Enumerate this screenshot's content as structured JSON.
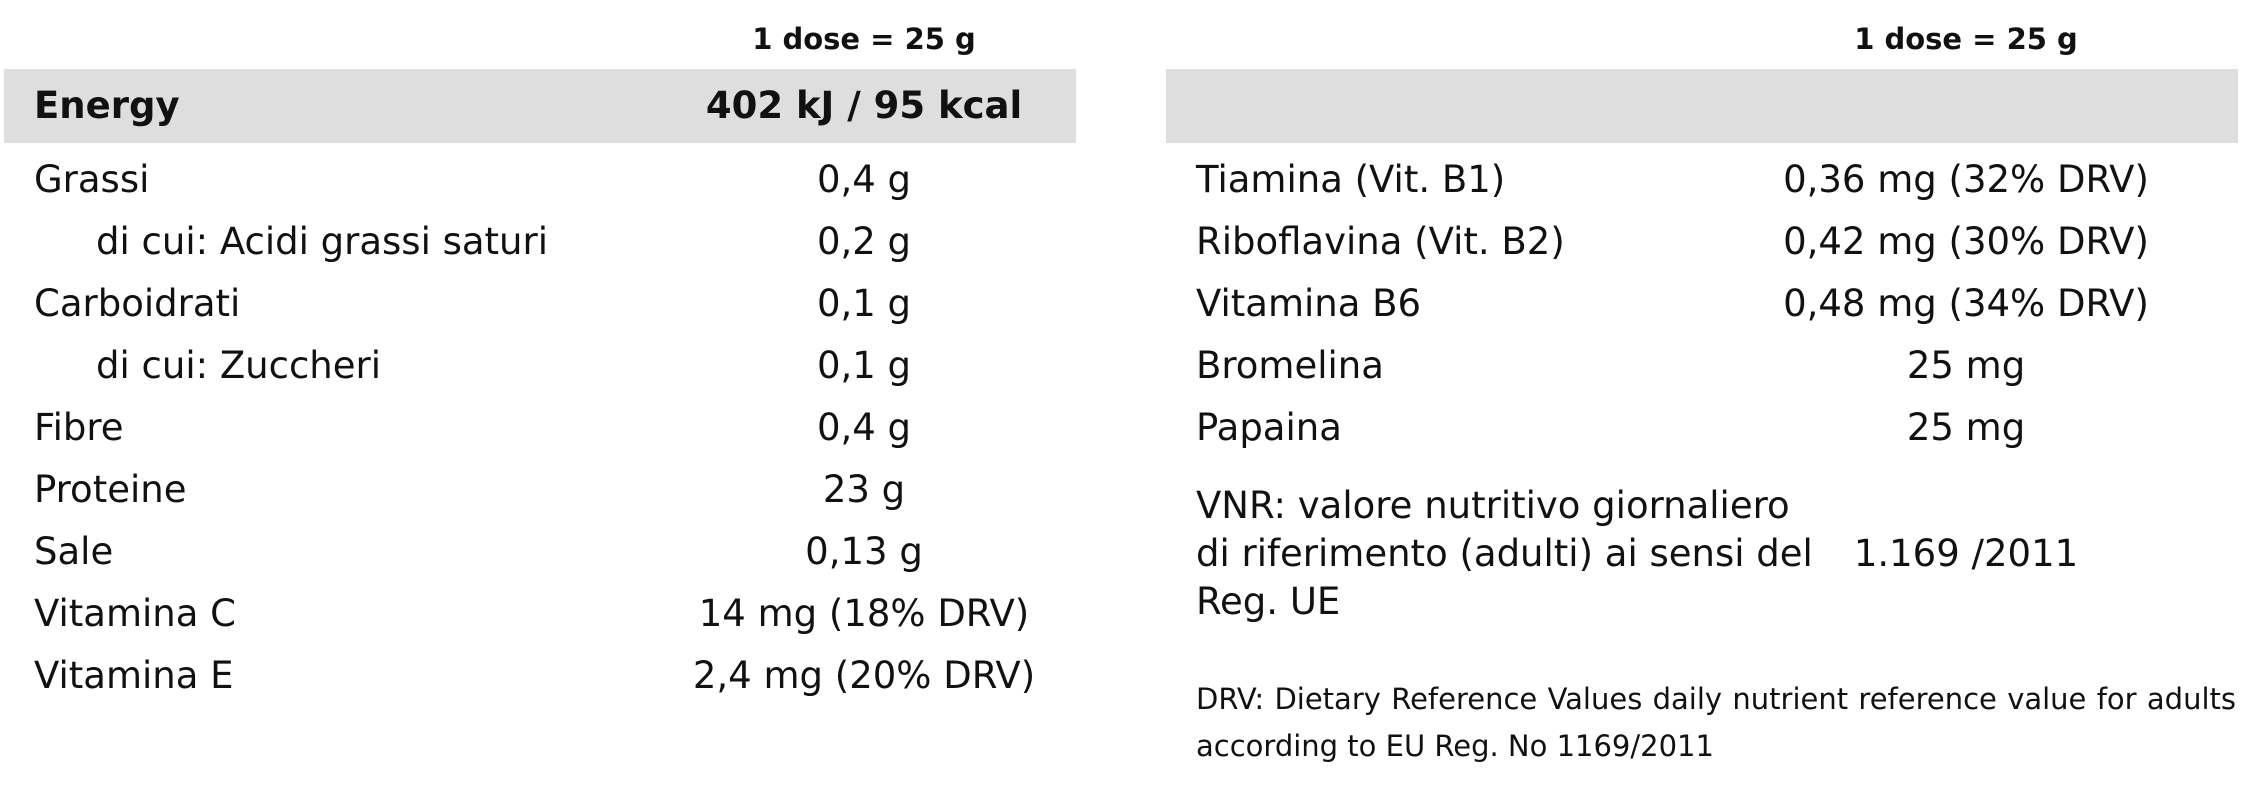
{
  "left": {
    "dose_header": "1 dose = 25 g",
    "energy": {
      "label": "Energy",
      "value": "402 kJ / 95 kcal"
    },
    "rows": [
      {
        "label": "Grassi",
        "value": "0,4 g"
      },
      {
        "label": "di cui: Acidi grassi saturi",
        "value": "0,2 g"
      },
      {
        "label": "Carboidrati",
        "value": "0,1 g"
      },
      {
        "label": "di cui: Zuccheri",
        "value": "0,1 g"
      },
      {
        "label": "Fibre",
        "value": "0,4 g"
      },
      {
        "label": "Proteine",
        "value": "23 g"
      },
      {
        "label": "Sale",
        "value": "0,13 g"
      },
      {
        "label": "Vitamina C",
        "value": "14 mg (18% DRV)"
      },
      {
        "label": "Vitamina E",
        "value": "2,4 mg (20% DRV)"
      }
    ]
  },
  "right": {
    "dose_header": "1 dose = 25 g",
    "rows": [
      {
        "label": "Tiamina (Vit. B1)",
        "value": "0,36 mg (32% DRV)"
      },
      {
        "label": "Riboflavina (Vit. B2)",
        "value": "0,42 mg (30% DRV)"
      },
      {
        "label": "Vitamina B6",
        "value": "0,48 mg (34% DRV)"
      },
      {
        "label": "Bromelina",
        "value": "25 mg"
      },
      {
        "label": "Papaina",
        "value": "25 mg"
      }
    ],
    "vnr": {
      "label": "VNR: valore nutritivo giornaliero di riferimento (adulti) ai sensi del Reg. UE",
      "value": "1.169 /2011"
    },
    "footnote": "DRV: Dietary Reference Values daily nutrient reference value for adults according to EU Reg. No 1169/2011"
  },
  "colors": {
    "band": "#dedede",
    "text": "#111111"
  }
}
